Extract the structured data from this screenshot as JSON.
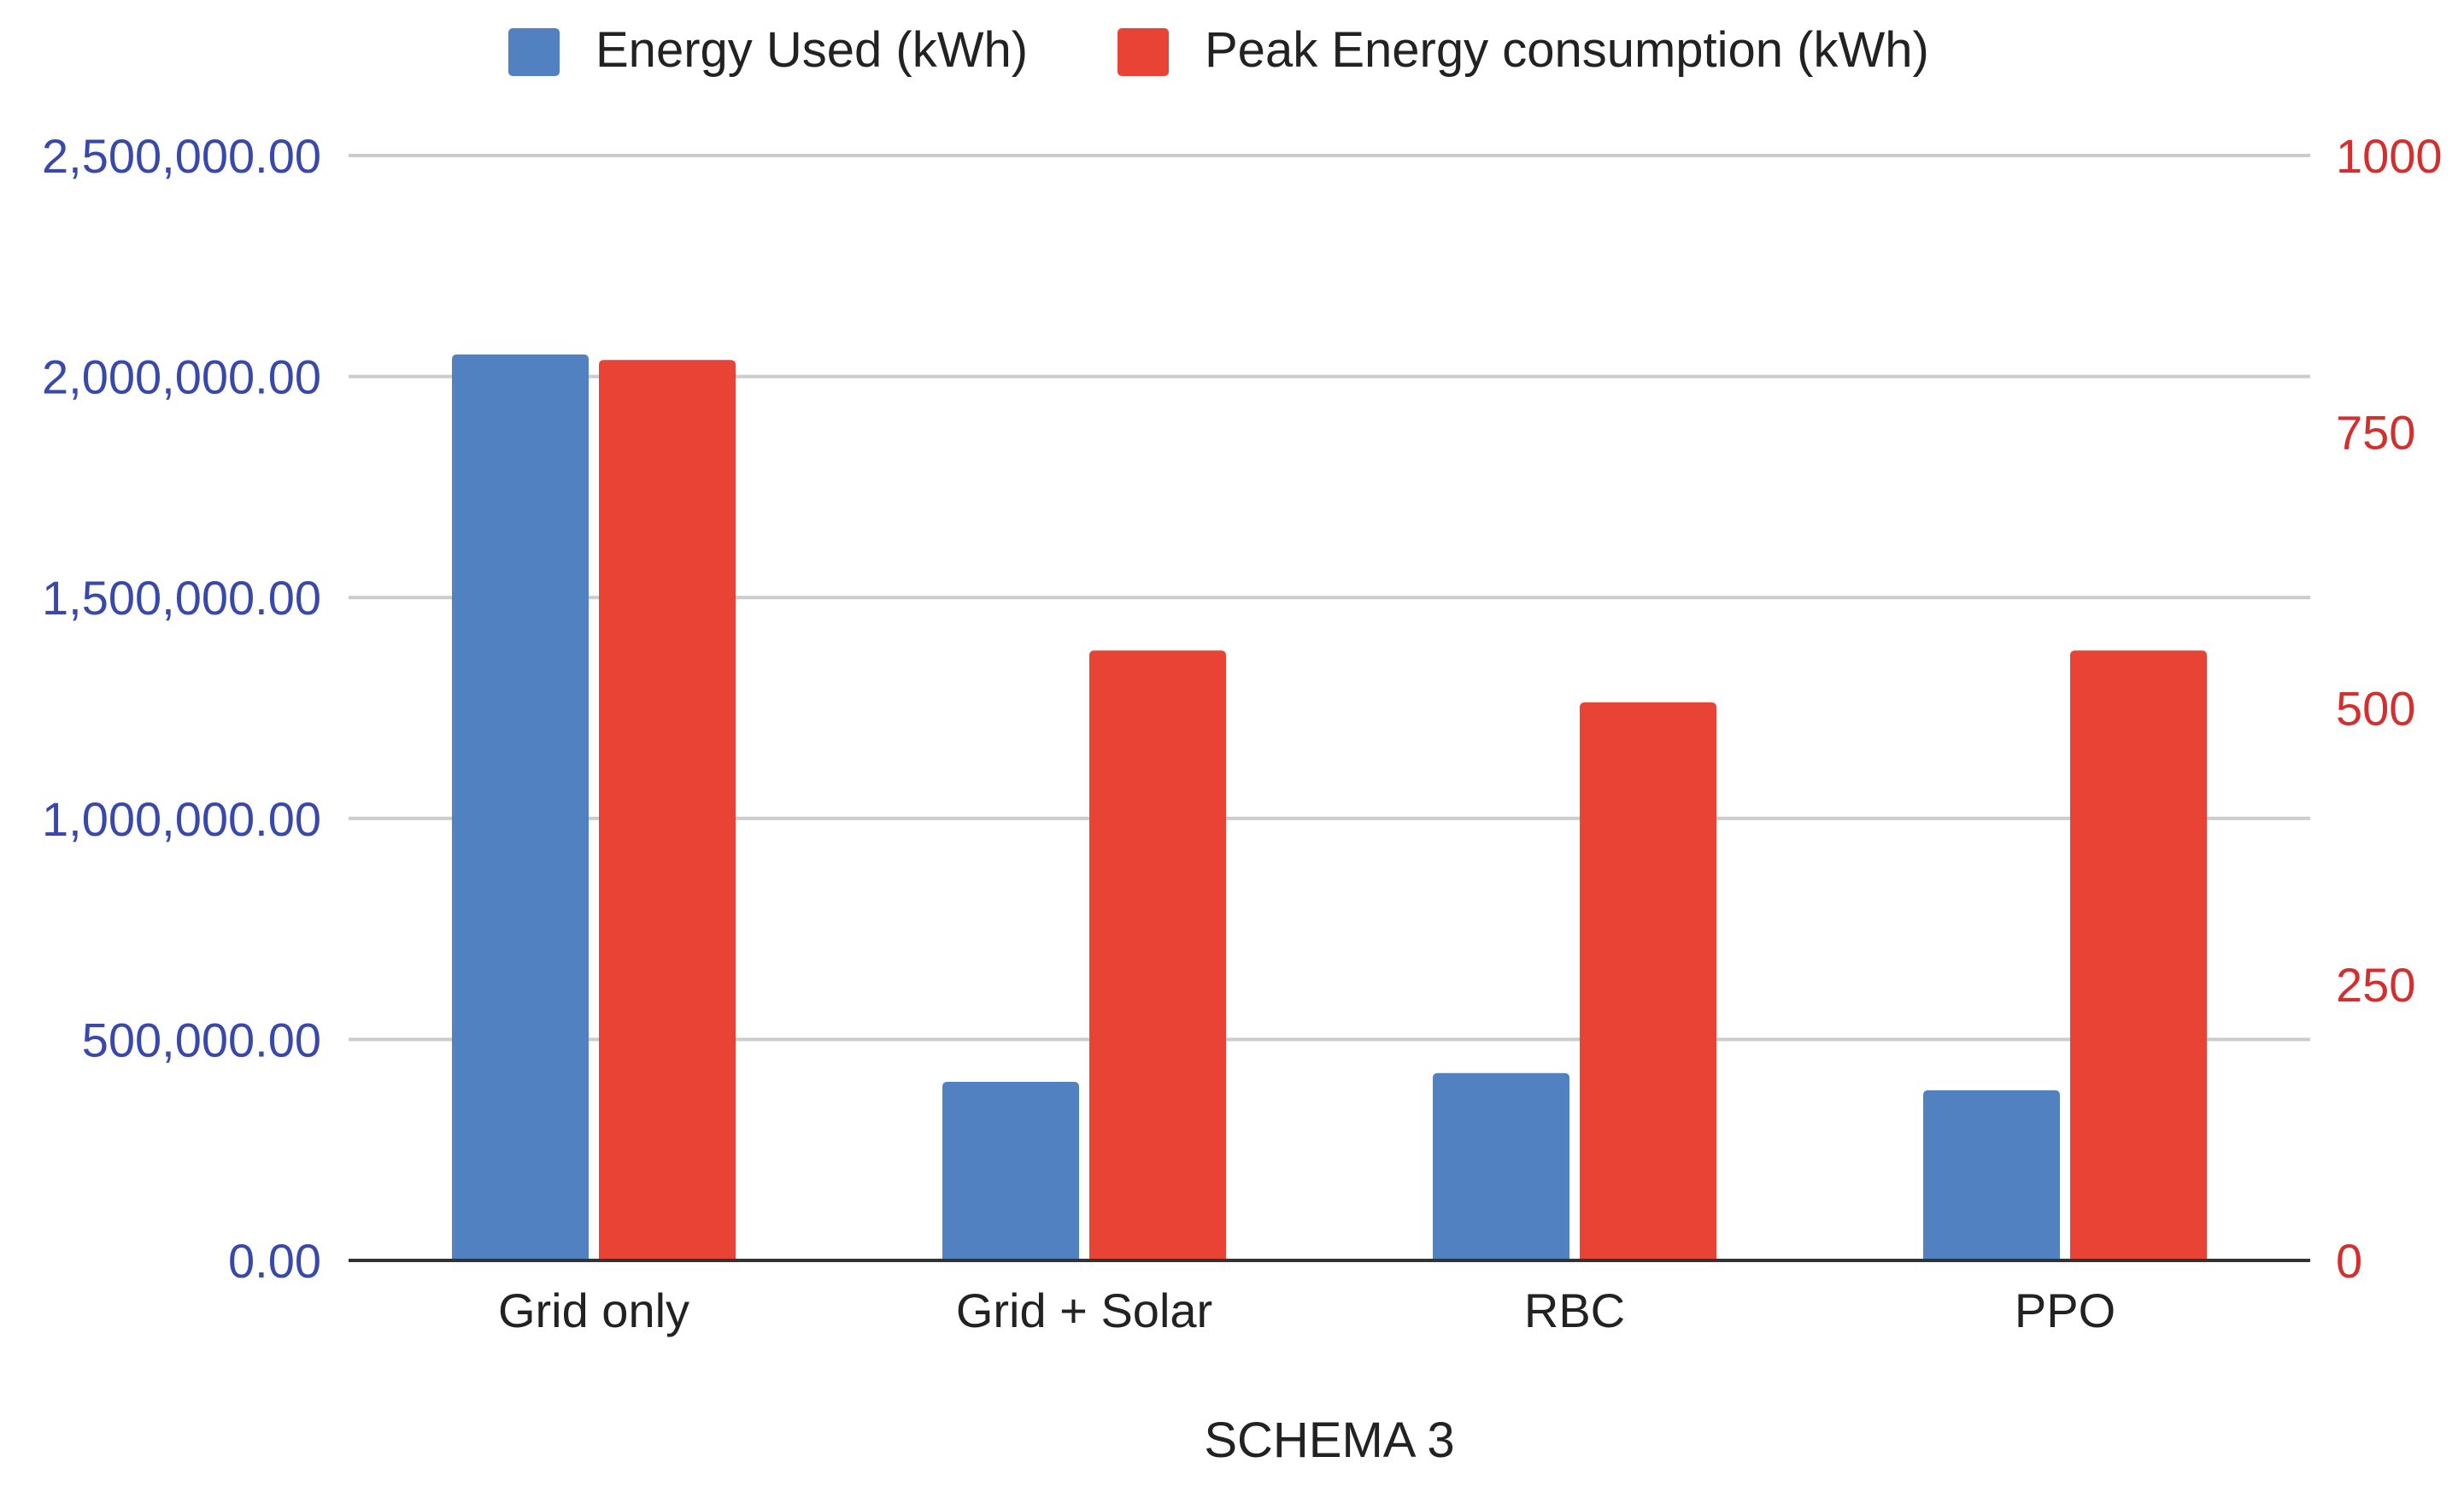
{
  "chart_data": {
    "type": "bar",
    "xlabel": "SCHEMA 3",
    "categories": [
      "Grid only",
      "Grid + Solar",
      "RBC",
      "PPO"
    ],
    "series": [
      {
        "name": "Energy Used (kWh)",
        "axis": "left",
        "color": "#5181c1",
        "values": [
          2050000,
          404000,
          424000,
          385000
        ]
      },
      {
        "name": "Peak Energy consumption (kWh)",
        "axis": "right",
        "color": "#e84335",
        "values": [
          815,
          552,
          505,
          552
        ]
      }
    ],
    "y_left": {
      "min": 0,
      "max": 2500000,
      "ticks": [
        "0.00",
        "500,000.00",
        "1,000,000.00",
        "1,500,000.00",
        "2,000,000.00",
        "2,500,000.00"
      ],
      "color": "#3949ab"
    },
    "y_right": {
      "min": 0,
      "max": 1000,
      "ticks": [
        "0",
        "250",
        "500",
        "750",
        "1000"
      ],
      "color": "#d32f2f"
    },
    "grid": true,
    "legend_position": "top"
  }
}
